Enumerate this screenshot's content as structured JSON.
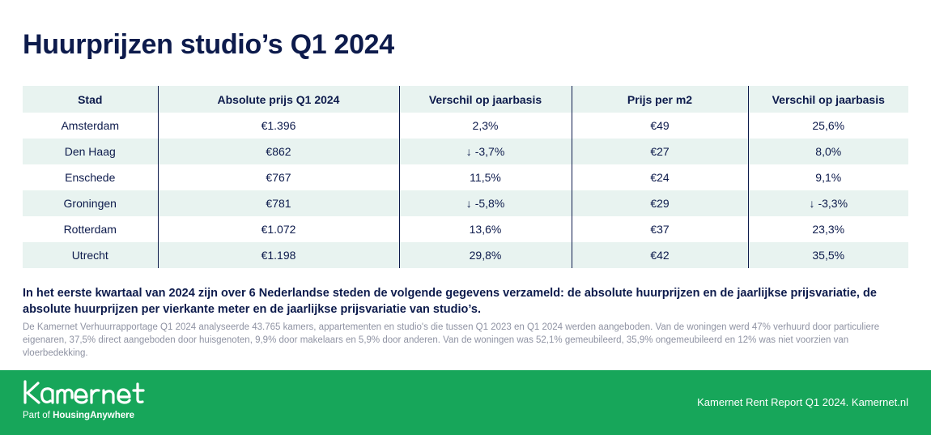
{
  "title": "Huurprijzen studio’s Q1 2024",
  "table": {
    "headers": [
      "Stad",
      "Absolute prijs Q1 2024",
      "Verschil op jaarbasis",
      "Prijs per m2",
      "Verschil op jaarbasis"
    ],
    "rows": [
      {
        "city": "Amsterdam",
        "price": "€1.396",
        "price_change": "2,3%",
        "price_m2": "€49",
        "m2_change": "25,6%",
        "price_change_negative": false,
        "m2_change_negative": false
      },
      {
        "city": "Den Haag",
        "price": "€862",
        "price_change": "-3,7%",
        "price_m2": "€27",
        "m2_change": "8,0%",
        "price_change_negative": true,
        "m2_change_negative": false
      },
      {
        "city": "Enschede",
        "price": "€767",
        "price_change": "11,5%",
        "price_m2": "€24",
        "m2_change": "9,1%",
        "price_change_negative": false,
        "m2_change_negative": false
      },
      {
        "city": "Groningen",
        "price": "€781",
        "price_change": "-5,8%",
        "price_m2": "€29",
        "m2_change": "-3,3%",
        "price_change_negative": true,
        "m2_change_negative": true
      },
      {
        "city": "Rotterdam",
        "price": "€1.072",
        "price_change": "13,6%",
        "price_m2": "€37",
        "m2_change": "23,3%",
        "price_change_negative": false,
        "m2_change_negative": false
      },
      {
        "city": "Utrecht",
        "price": "€1.198",
        "price_change": "29,8%",
        "price_m2": "€42",
        "m2_change": "35,5%",
        "price_change_negative": false,
        "m2_change_negative": false
      }
    ],
    "negative_arrow": "↓"
  },
  "summary": "In het eerste kwartaal van 2024 zijn over 6 Nederlandse steden de volgende gegevens verzameld: de absolute huurprijzen en de jaarlijkse prijsvariatie, de absolute huurprijzen per vierkante meter en de jaarlijkse prijsvariatie van studio’s.",
  "note": "De Kamernet Verhuurrapportage Q1 2024 analyseerde 43.765 kamers, appartementen en studio's die tussen Q1 2023 en Q1 2024 werden aangeboden. Van de woningen werd 47% verhuurd door particuliere eigenaren, 37,5% direct aangeboden door huisgenoten, 9,9% door makelaars en 5,9% door anderen. Van de woningen was 52,1% gemeubileerd, 35,9% ongemeubileerd en 12% was niet voorzien van vloerbedekking.",
  "footer": {
    "brand": "Kamernet",
    "tagline_prefix": "Part of ",
    "tagline_brand": "HousingAnywhere",
    "report": "Kamernet Rent Report Q1 2024. Kamernet.nl"
  },
  "colors": {
    "navy": "#0d1b4c",
    "row_shade": "#e8f3f0",
    "negative": "#e0463a",
    "footer_green": "#17a65a",
    "note_gray": "#8f93a3"
  }
}
